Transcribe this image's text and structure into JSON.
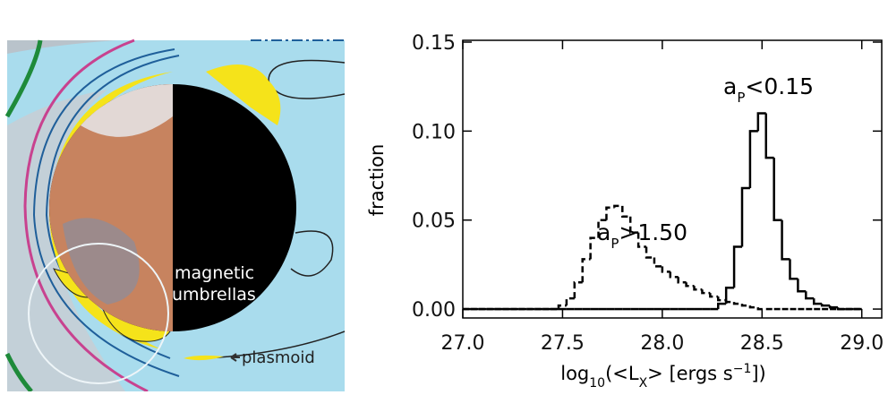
{
  "illustration": {
    "labels": [
      "magnetic",
      "umbrellas",
      "plasmoid"
    ]
  },
  "chart_data": {
    "type": "histogram",
    "ylabel": "fraction",
    "xlabel_parts": [
      "log",
      "10",
      "(<L",
      "X",
      "> [ergs s",
      "−1",
      "])"
    ],
    "xlim": [
      27.0,
      29.1
    ],
    "ylim": [
      -0.005,
      0.15
    ],
    "xticks": [
      {
        "value": 27.0,
        "label": "27.0"
      },
      27.5,
      {
        "value": 28.0,
        "label": "28.0"
      },
      28.5,
      {
        "value": 29.0,
        "label": "29.0"
      }
    ],
    "yticks": [
      {
        "value": 0,
        "label": "0.00"
      },
      0.05,
      {
        "value": 0.1,
        "label": "0.10"
      },
      0.15
    ],
    "bins": [
      27.0,
      27.04,
      27.08,
      27.12,
      27.16,
      27.2,
      27.24,
      27.28,
      27.32,
      27.36,
      27.4,
      27.44,
      27.48,
      27.52,
      27.56,
      27.6,
      27.64,
      27.68,
      27.72,
      27.76,
      27.8,
      27.84,
      27.88,
      27.92,
      27.96,
      28.0,
      28.04,
      28.08,
      28.12,
      28.16,
      28.2,
      28.24,
      28.28,
      28.32,
      28.36,
      28.4,
      28.44,
      28.48,
      28.52,
      28.56,
      28.6,
      28.64,
      28.68,
      28.72,
      28.76,
      28.8,
      28.84,
      28.88,
      28.92,
      28.96,
      29.0
    ],
    "series": [
      {
        "name_parts": [
          "a",
          "P",
          ">1.50"
        ],
        "color": "#000000",
        "dashed": true,
        "values": [
          0,
          0,
          0,
          0,
          0,
          0,
          0,
          0,
          0,
          0,
          0,
          0,
          0.002,
          0.006,
          0.015,
          0.028,
          0.04,
          0.05,
          0.057,
          0.058,
          0.052,
          0.043,
          0.035,
          0.029,
          0.024,
          0.021,
          0.018,
          0.015,
          0.013,
          0.011,
          0.009,
          0.007,
          0.005,
          0.004,
          0.003,
          0.002,
          0.001,
          0,
          0,
          0,
          0,
          0,
          0,
          0,
          0,
          0,
          0,
          0,
          0,
          0
        ]
      },
      {
        "name_parts": [
          "a",
          "P",
          "<0.15"
        ],
        "color": "#000000",
        "dashed": false,
        "values": [
          0,
          0,
          0,
          0,
          0,
          0,
          0,
          0,
          0,
          0,
          0,
          0,
          0,
          0,
          0,
          0,
          0,
          0,
          0,
          0,
          0,
          0,
          0,
          0,
          0,
          0,
          0,
          0,
          0,
          0,
          0,
          0,
          0.003,
          0.012,
          0.035,
          0.068,
          0.1,
          0.11,
          0.085,
          0.05,
          0.028,
          0.017,
          0.01,
          0.006,
          0.003,
          0.002,
          0.001,
          0,
          0,
          0
        ]
      }
    ]
  }
}
